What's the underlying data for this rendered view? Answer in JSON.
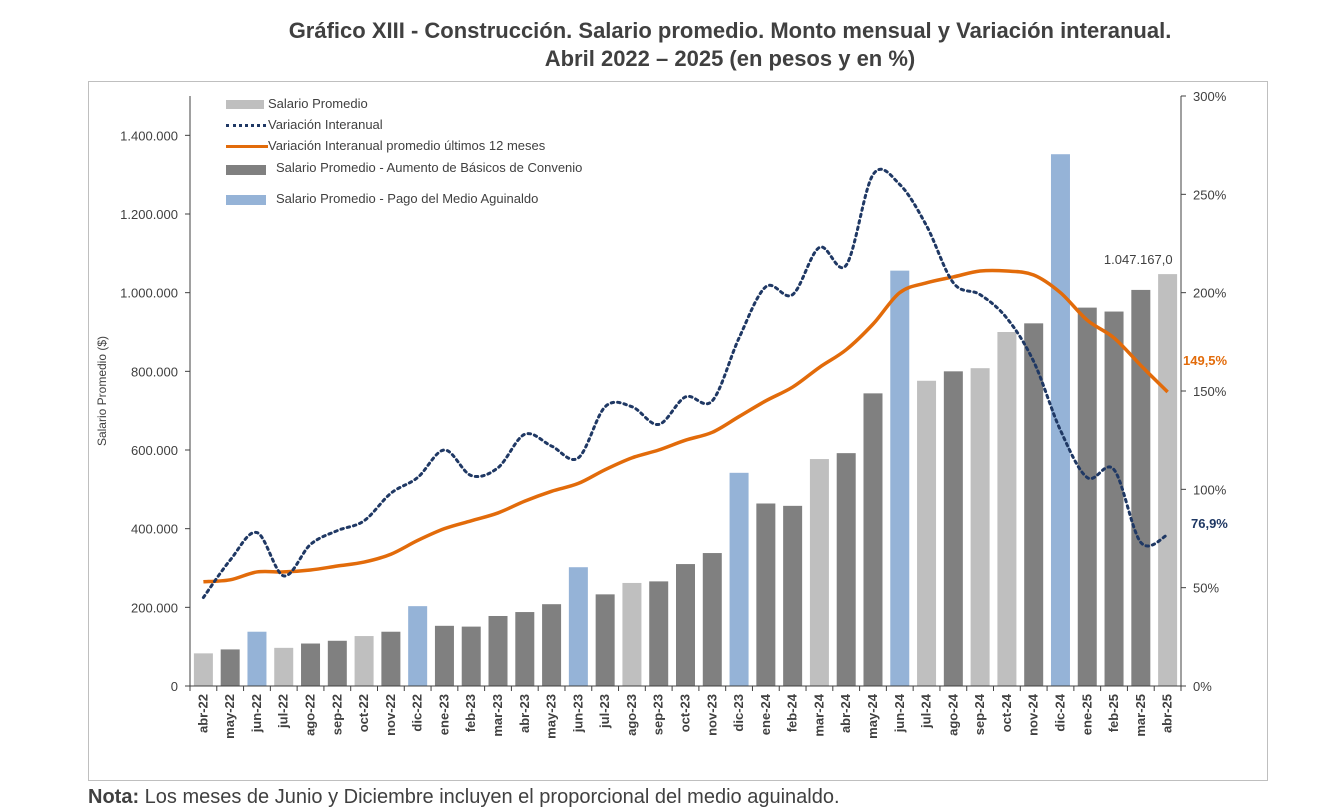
{
  "header": {
    "title_line1": "Gráfico XIII - Construcción. Salario promedio. Monto mensual y Variación interanual.",
    "title_line2": "Abril 2022 – 2025 (en pesos y en %)"
  },
  "footer": {
    "note_label": "Nota:",
    "note_text": " Los meses de Junio y Diciembre incluyen el proporcional del medio aguinaldo."
  },
  "legend": {
    "items": [
      "Salario Promedio",
      "Variación Interanual",
      "Variación Interanual promedio últimos 12 meses",
      "Salario Promedio - Aumento de Básicos de Convenio",
      "Salario Promedio - Pago del Medio Aguinaldo"
    ]
  },
  "colors": {
    "salario": "#bfbfbf",
    "basicos": "#808080",
    "aguinaldo": "#95b3d7",
    "variacion": "#1f3864",
    "promedio": "#e26b0a",
    "axis": "#404040"
  },
  "chart_data": {
    "type": "bar",
    "ylabel": "Salario Promedio ($)",
    "ylim": [
      0,
      1500000
    ],
    "y2lim": [
      0,
      300
    ],
    "yticks": [
      "0",
      "200.000",
      "400.000",
      "600.000",
      "800.000",
      "1.000.000",
      "1.200.000",
      "1.400.000"
    ],
    "y2ticks": [
      "0%",
      "50%",
      "100%",
      "150%",
      "200%",
      "250%",
      "300%"
    ],
    "categories": [
      "abr-22",
      "may-22",
      "jun-22",
      "jul-22",
      "ago-22",
      "sep-22",
      "oct-22",
      "nov-22",
      "dic-22",
      "ene-23",
      "feb-23",
      "mar-23",
      "abr-23",
      "may-23",
      "jun-23",
      "jul-23",
      "ago-23",
      "sep-23",
      "oct-23",
      "nov-23",
      "dic-23",
      "ene-24",
      "feb-24",
      "mar-24",
      "abr-24",
      "may-24",
      "jun-24",
      "jul-24",
      "ago-24",
      "sep-24",
      "oct-24",
      "nov-24",
      "dic-24",
      "ene-25",
      "feb-25",
      "mar-25",
      "abr-25"
    ],
    "bar_type": [
      "salario",
      "basicos",
      "aguinaldo",
      "salario",
      "basicos",
      "basicos",
      "salario",
      "basicos",
      "aguinaldo",
      "basicos",
      "basicos",
      "basicos",
      "basicos",
      "basicos",
      "aguinaldo",
      "basicos",
      "salario",
      "basicos",
      "basicos",
      "basicos",
      "aguinaldo",
      "basicos",
      "basicos",
      "salario",
      "basicos",
      "basicos",
      "aguinaldo",
      "salario",
      "basicos",
      "salario",
      "salario",
      "basicos",
      "aguinaldo",
      "basicos",
      "basicos",
      "basicos",
      "salario"
    ],
    "series": [
      {
        "name": "Salario Promedio",
        "axis": "left",
        "values": [
          83000,
          93000,
          138000,
          97000,
          108000,
          115000,
          127000,
          138000,
          203000,
          153000,
          151000,
          178000,
          188000,
          208000,
          302000,
          233000,
          262000,
          266000,
          310000,
          338000,
          542000,
          464000,
          458000,
          577000,
          592000,
          744000,
          1056000,
          776000,
          800000,
          808000,
          900000,
          922000,
          1352000,
          962000,
          952000,
          1007000,
          1047167
        ]
      },
      {
        "name": "Variación Interanual",
        "axis": "right",
        "values": [
          45,
          64,
          78,
          56,
          72,
          79,
          84,
          98,
          106,
          120,
          107,
          111,
          128,
          122,
          116,
          142,
          142,
          133,
          147,
          145,
          177,
          203,
          199,
          223,
          214,
          260,
          255,
          234,
          205,
          199,
          187,
          165,
          130,
          106,
          110,
          73,
          76.9
        ]
      },
      {
        "name": "Variación Interanual promedio últimos 12 meses",
        "axis": "right",
        "values": [
          53,
          54,
          58,
          58,
          59,
          61,
          63,
          67,
          74,
          80,
          84,
          88,
          94,
          99,
          103,
          110,
          116,
          120,
          125,
          129,
          137,
          145,
          152,
          162,
          171,
          184,
          200,
          205,
          208,
          211,
          211,
          209,
          200,
          186,
          177,
          163,
          149.5
        ]
      }
    ],
    "annotations": {
      "last_bar_label": "1.047.167,0",
      "last_avg_label": "149,5%",
      "last_var_label": "76,9%"
    }
  }
}
